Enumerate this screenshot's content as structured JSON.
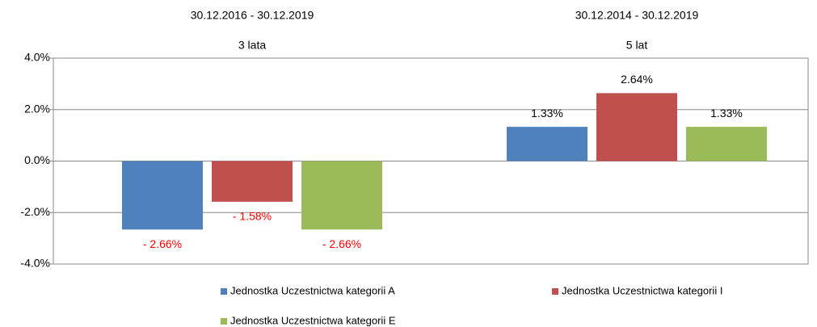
{
  "chart_data": {
    "type": "bar",
    "categories": [
      "30.12.2016 - 30.12.2019",
      "30.12.2014 - 30.12.2019"
    ],
    "category_sublabels": [
      "3 lata",
      "5 lat"
    ],
    "series": [
      {
        "name": "Jednostka Uczestnictwa kategorii A",
        "color": "#4f81bd",
        "values": [
          -2.66,
          1.33
        ],
        "value_labels": [
          "- 2.66%",
          "1.33%"
        ]
      },
      {
        "name": "Jednostka Uczestnictwa kategorii I",
        "color": "#c0504d",
        "values": [
          -1.58,
          2.64
        ],
        "value_labels": [
          "- 1.58%",
          "2.64%"
        ]
      },
      {
        "name": "Jednostka Uczestnictwa kategorii E",
        "color": "#9bbb59",
        "values": [
          -2.66,
          1.33
        ],
        "value_labels": [
          "- 2.66%",
          "1.33%"
        ]
      }
    ],
    "negative_label_color": "#ff0000",
    "ylim": [
      -4,
      4
    ],
    "yticks": [
      {
        "value": -4,
        "label": "-4.0%"
      },
      {
        "value": -2,
        "label": "-2.0%"
      },
      {
        "value": 0,
        "label": "0.0%"
      },
      {
        "value": 2,
        "label": "2.0%"
      },
      {
        "value": 4,
        "label": "4.0%"
      }
    ],
    "grid": true
  }
}
